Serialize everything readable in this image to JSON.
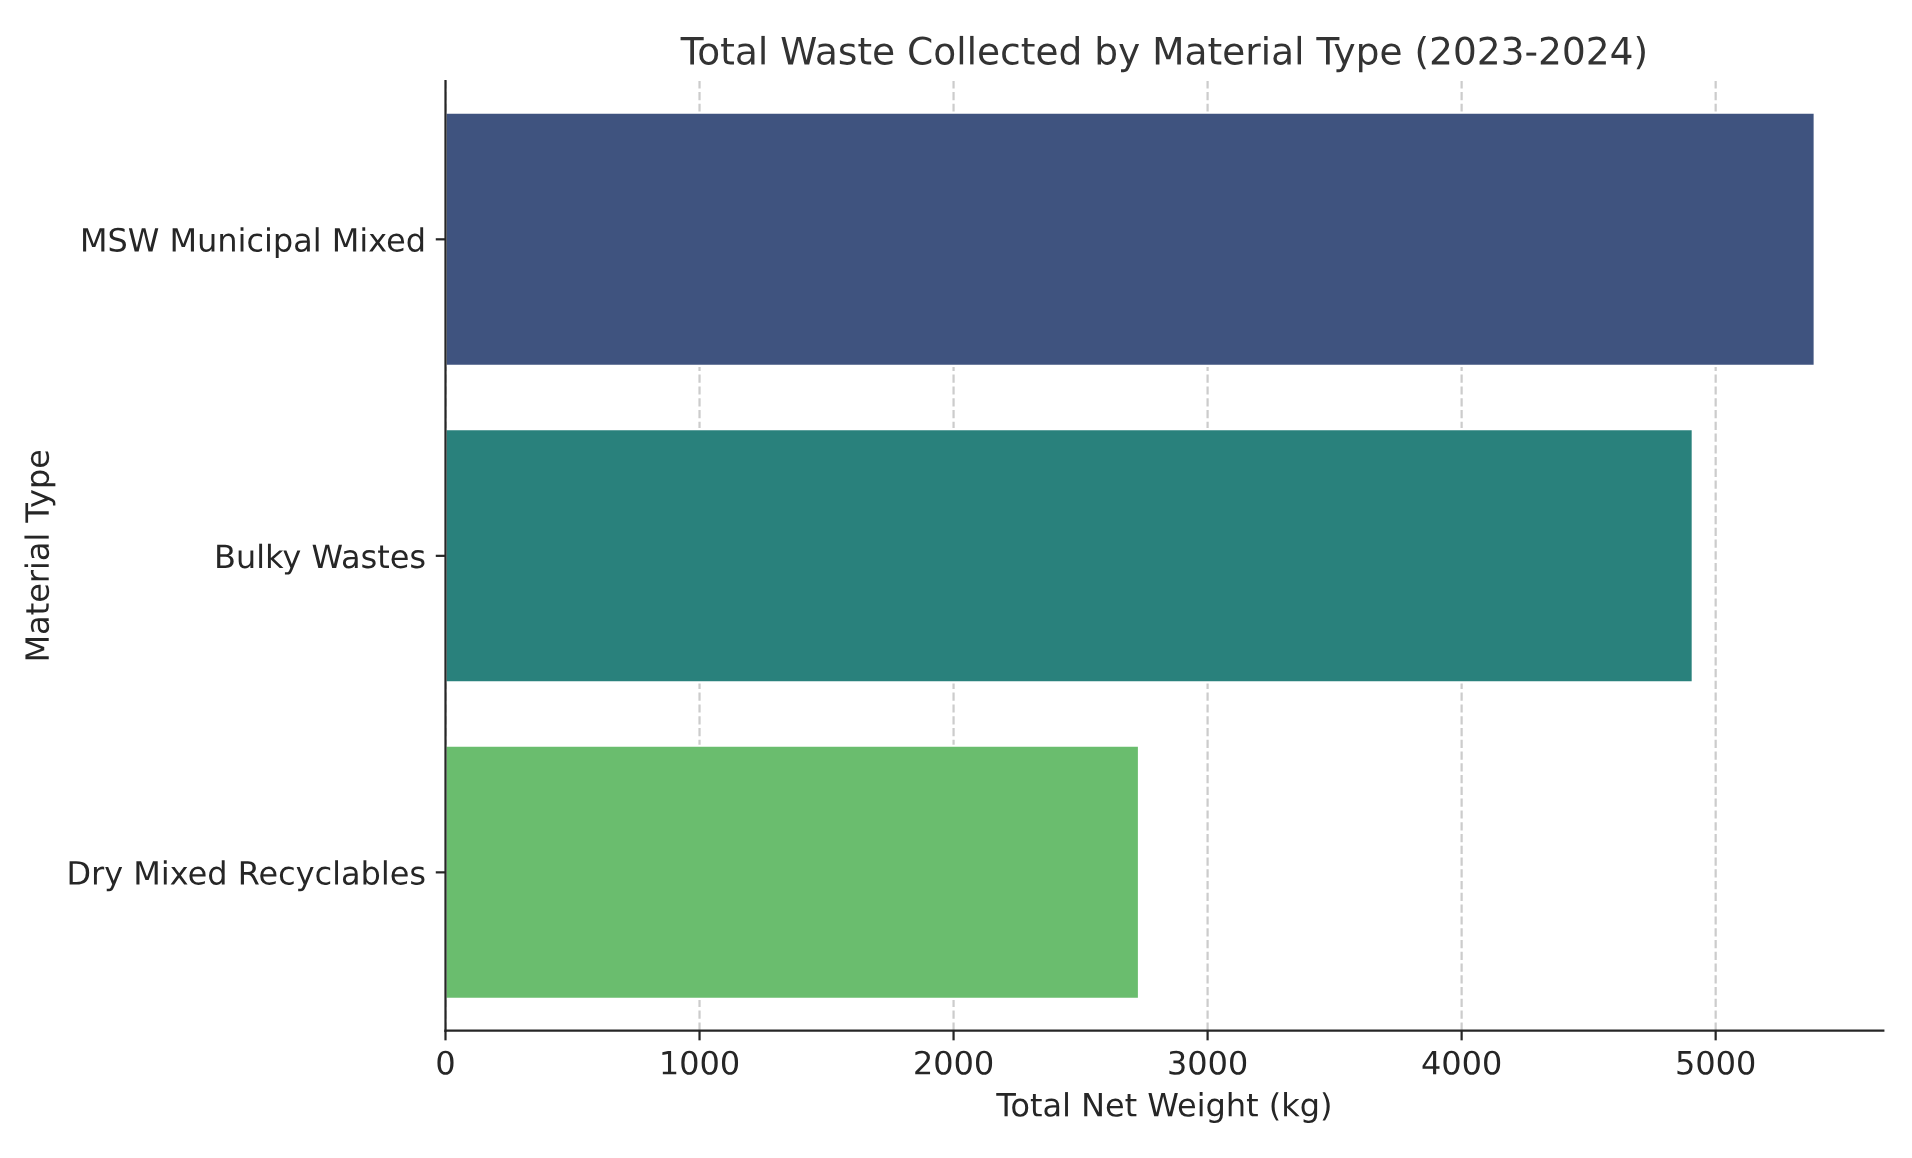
{
  "chart_data": {
    "type": "bar",
    "orientation": "horizontal",
    "title": "Total Waste Collected by Material Type (2023-2024)",
    "xlabel": "Total Net Weight (kg)",
    "ylabel": "Material Type",
    "categories": [
      "MSW Municipal Mixed",
      "Bulky Wastes",
      "Dry Mixed Recyclables"
    ],
    "values": [
      5390,
      4910,
      2730
    ],
    "colors": [
      "#3f537f",
      "#29817c",
      "#6abd6e"
    ],
    "xlim": [
      0,
      5660
    ],
    "xticks": [
      0,
      1000,
      2000,
      3000,
      4000,
      5000
    ],
    "grid": "x",
    "legend": false
  }
}
